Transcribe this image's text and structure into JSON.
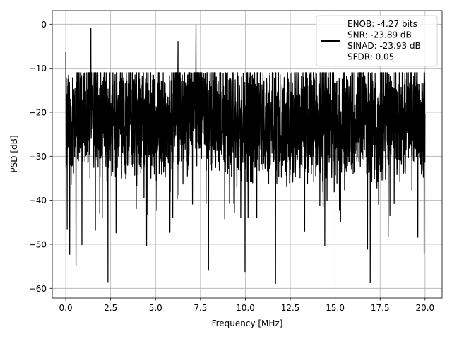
{
  "chart_data": {
    "type": "line",
    "title": "",
    "xlabel": "Frequency [MHz]",
    "ylabel": "PSD [dB]",
    "xlim": [
      -0.75,
      20.95
    ],
    "ylim": [
      -62.2,
      3.1
    ],
    "xticks": [
      0.0,
      2.5,
      5.0,
      7.5,
      10.0,
      12.5,
      15.0,
      17.5,
      20.0
    ],
    "xtick_labels": [
      "0.0",
      "2.5",
      "5.0",
      "7.5",
      "10.0",
      "12.5",
      "15.0",
      "17.5",
      "20.0"
    ],
    "yticks": [
      0,
      -10,
      -20,
      -30,
      -40,
      -50,
      -60
    ],
    "ytick_labels": [
      "0",
      "−10",
      "−20",
      "−30",
      "−40",
      "−50",
      "−60"
    ],
    "grid": true,
    "legend_position": "top-right",
    "series": [
      {
        "name": "ENOB: -4.27 bits\nSNR: -23.89 dB\nSINAD: -23.93 dB\nSFDR: 0.05",
        "color": "#000000",
        "description_range": {
          "x": [
            0,
            20
          ],
          "y": [
            -58.9,
            -0.1
          ]
        },
        "notable_points": [
          {
            "x": 0.0,
            "y": -6.3
          },
          {
            "x": 0.08,
            "y": -46.5
          },
          {
            "x": 0.22,
            "y": -52.3
          },
          {
            "x": 0.57,
            "y": -54.8
          },
          {
            "x": 0.9,
            "y": -50.1
          },
          {
            "x": 1.4,
            "y": -0.9
          },
          {
            "x": 1.65,
            "y": -46.8
          },
          {
            "x": 2.35,
            "y": -58.5
          },
          {
            "x": 2.8,
            "y": -47.4
          },
          {
            "x": 4.5,
            "y": -50.3
          },
          {
            "x": 5.8,
            "y": -47.3
          },
          {
            "x": 6.25,
            "y": -3.9
          },
          {
            "x": 7.25,
            "y": -0.1
          },
          {
            "x": 7.95,
            "y": -55.9
          },
          {
            "x": 8.85,
            "y": -44.2
          },
          {
            "x": 9.98,
            "y": -56.2
          },
          {
            "x": 11.68,
            "y": -58.9
          },
          {
            "x": 13.3,
            "y": -47.0
          },
          {
            "x": 14.42,
            "y": -50.3
          },
          {
            "x": 15.3,
            "y": -44.8
          },
          {
            "x": 16.8,
            "y": -51.1
          },
          {
            "x": 16.95,
            "y": -58.7
          },
          {
            "x": 17.95,
            "y": -48.2
          },
          {
            "x": 19.6,
            "y": -48.4
          },
          {
            "x": 19.95,
            "y": -52.0
          }
        ],
        "note": "Dense noisy PSD trace from 0 to 20 MHz"
      }
    ]
  }
}
